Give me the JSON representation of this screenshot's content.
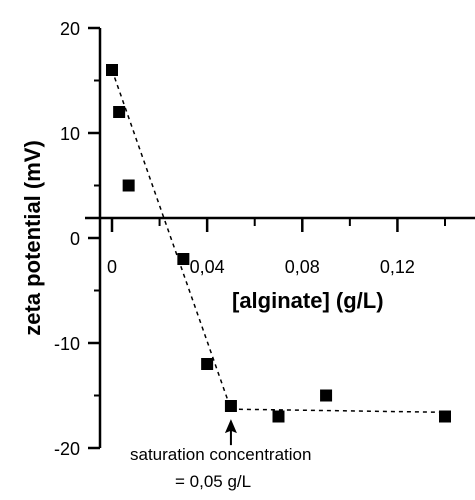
{
  "chart_data": {
    "type": "scatter",
    "xlabel": "[alginate] (g/L)",
    "ylabel": "zeta potential (mV)",
    "xlim": [
      0,
      0.14
    ],
    "ylim": [
      -20,
      20
    ],
    "x_ticks": [
      {
        "value": 0,
        "label": "0"
      },
      {
        "value": 0.04,
        "label": "0,04"
      },
      {
        "value": 0.08,
        "label": "0,08"
      },
      {
        "value": 0.12,
        "label": "0,12"
      }
    ],
    "y_ticks": [
      {
        "value": 20,
        "label": "20"
      },
      {
        "value": 10,
        "label": "10"
      },
      {
        "value": 0,
        "label": "0"
      },
      {
        "value": -10,
        "label": "-10"
      },
      {
        "value": -20,
        "label": "-20"
      }
    ],
    "series": [
      {
        "x": [
          0.0,
          0.003,
          0.007,
          0.03,
          0.04,
          0.05,
          0.07,
          0.09,
          0.14
        ],
        "y": [
          16,
          12,
          5,
          -2,
          -12,
          -16,
          -17,
          -15,
          -17
        ]
      }
    ],
    "fit_lines": [
      {
        "x": [
          0.0,
          0.05
        ],
        "y": [
          16,
          -16.3
        ]
      },
      {
        "x": [
          0.05,
          0.14
        ],
        "y": [
          -16.3,
          -16.6
        ]
      }
    ],
    "annotation": {
      "line1": "saturation concentration",
      "line2": "= 0,05 g/L",
      "x": 0.05
    },
    "colors": {
      "marker": "#000000",
      "axis": "#000000"
    }
  }
}
